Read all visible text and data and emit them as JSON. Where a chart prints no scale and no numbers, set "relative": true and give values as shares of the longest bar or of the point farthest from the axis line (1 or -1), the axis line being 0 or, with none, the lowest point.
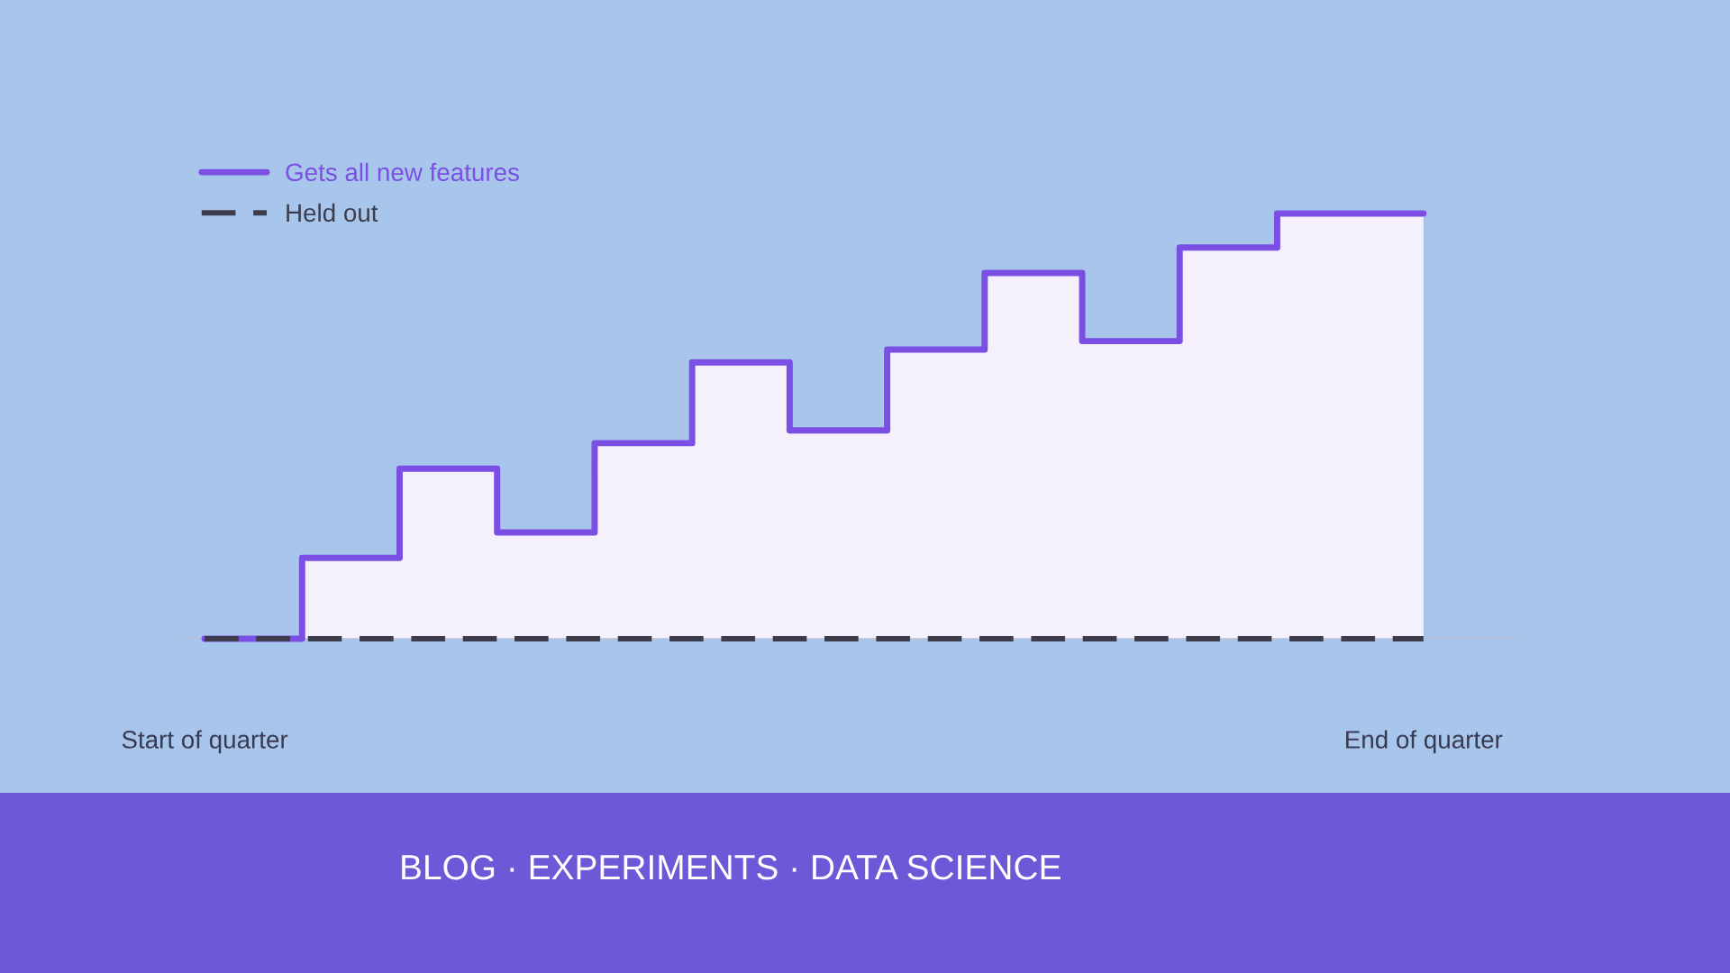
{
  "chart_data": {
    "type": "step",
    "relative": true,
    "categories": [
      "Start of quarter",
      null,
      null,
      null,
      null,
      null,
      null,
      null,
      null,
      null,
      null,
      null,
      null,
      null,
      null,
      null,
      null,
      null,
      null,
      null,
      null,
      null,
      null,
      null,
      null,
      "End of quarter"
    ],
    "series": [
      {
        "name": "Gets all new features",
        "color": "#7b4fe3",
        "line_style": "solid",
        "values": [
          0,
          0,
          0.19,
          0.19,
          0.4,
          0.4,
          0.25,
          0.25,
          0.46,
          0.46,
          0.65,
          0.65,
          0.49,
          0.49,
          0.68,
          0.68,
          0.86,
          0.86,
          0.7,
          0.7,
          0.92,
          0.92,
          1.0,
          1.0,
          1.0,
          1.0
        ]
      },
      {
        "name": "Held out",
        "color": "#3c3c4a",
        "line_style": "dashed",
        "type": "line",
        "values": [
          0,
          0,
          0,
          0,
          0,
          0,
          0,
          0,
          0,
          0,
          0,
          0,
          0,
          0,
          0,
          0,
          0,
          0,
          0,
          0,
          0,
          0,
          0,
          0,
          0,
          0
        ]
      }
    ],
    "legend": "top left",
    "annotations": [
      "BLOG · EXPERIMENTS · DATA SCIENCE"
    ]
  }
}
